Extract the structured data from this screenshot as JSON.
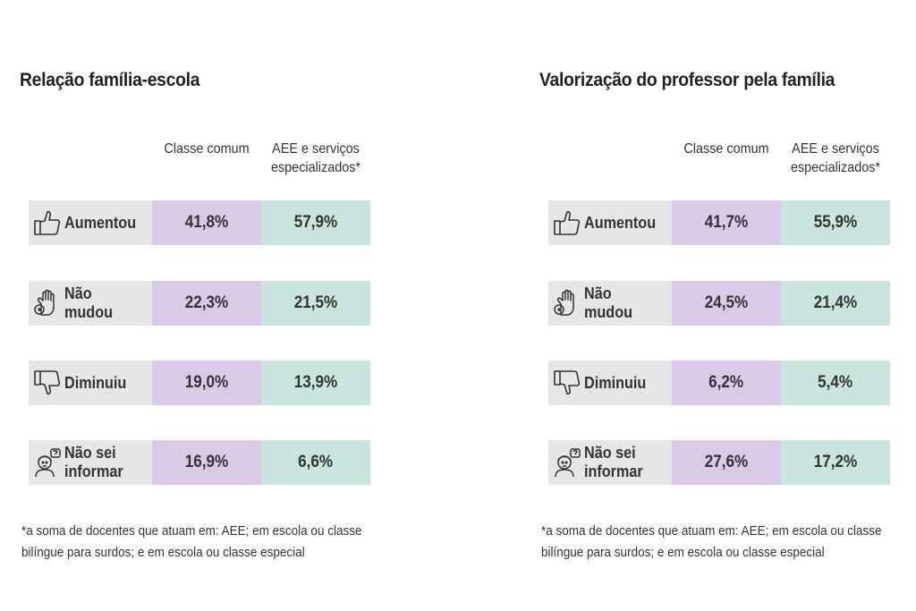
{
  "colors": {
    "label_bg": "#e6e6e6",
    "classe_comum": "#d9cbe8",
    "aee": "#c8e6df"
  },
  "chart_data": [
    {
      "type": "table",
      "title": "Relação família-escola",
      "columns": [
        "Classe comum",
        "AEE e serviços especializados*"
      ],
      "rows": [
        {
          "icon": "thumbs-up-icon",
          "label": "Aumentou",
          "values": [
            "41,8%",
            "57,9%"
          ]
        },
        {
          "icon": "raised-hand-icon",
          "label": "Não mudou",
          "values": [
            "22,3%",
            "21,5%"
          ]
        },
        {
          "icon": "thumbs-down-icon",
          "label": "Diminuiu",
          "values": [
            "19,0%",
            "13,9%"
          ]
        },
        {
          "icon": "confused-person-icon",
          "label": "Não sei\ninformar",
          "values": [
            "16,9%",
            "6,6%"
          ]
        }
      ],
      "footnote": "*a soma de docentes que atuam em: AEE; em escola ou classe bilíngue para surdos; e em escola ou classe especial"
    },
    {
      "type": "table",
      "title": "Valorização do professor pela família",
      "columns": [
        "Classe comum",
        "AEE e serviços especializados*"
      ],
      "rows": [
        {
          "icon": "thumbs-up-icon",
          "label": "Aumentou",
          "values": [
            "41,7%",
            "55,9%"
          ]
        },
        {
          "icon": "raised-hand-icon",
          "label": "Não mudou",
          "values": [
            "24,5%",
            "21,4%"
          ]
        },
        {
          "icon": "thumbs-down-icon",
          "label": "Diminuiu",
          "values": [
            "6,2%",
            "5,4%"
          ]
        },
        {
          "icon": "confused-person-icon",
          "label": "Não sei\ninformar",
          "values": [
            "27,6%",
            "17,2%"
          ]
        }
      ],
      "footnote": "*a soma de docentes que atuam em: AEE; em escola ou classe bilíngue para surdos; e em escola ou classe especial"
    }
  ]
}
